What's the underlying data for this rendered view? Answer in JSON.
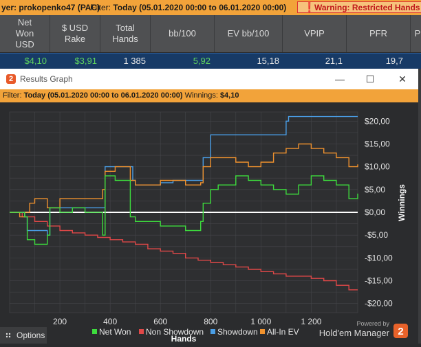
{
  "topbar": {
    "player_text": "yer: prokopenko47 (PAC)",
    "filter_label": "Filter:",
    "filter_value": "Today (05.01.2020 00:00 to 06.01.2020 00:00)",
    "warning": "Warning: Restricted Hands Sma"
  },
  "stats": {
    "headers": [
      "Net Won USD",
      "$ USD Rake",
      "Total Hands",
      "bb/100",
      "EV bb/100",
      "VPIP",
      "PFR",
      "P"
    ],
    "values": [
      "$4,10",
      "$3,91",
      "1 385",
      "5,92",
      "15,18",
      "21,1",
      "19,7"
    ],
    "value_colors": [
      "#5fd35f",
      "#5fd35f",
      "#e8e8e8",
      "#5fd35f",
      "#e8e8e8",
      "#e8e8e8",
      "#e8e8e8"
    ]
  },
  "window": {
    "title": "Results Graph",
    "logo_char": "2",
    "minimize": "—",
    "maximize": "☐",
    "close": "✕"
  },
  "filterbar": {
    "label": "Filter:",
    "value": "Today (05.01.2020 00:00 to 06.01.2020 00:00)",
    "winnings_label": "Winnings:",
    "winnings_value": "$4,10"
  },
  "chart_data": {
    "type": "line",
    "xlabel": "Hands",
    "ylabel": "Winnings",
    "xlim": [
      0,
      1385
    ],
    "ylim": [
      -22,
      22
    ],
    "xticks": [
      200,
      400,
      600,
      800,
      1000,
      1200
    ],
    "xtick_labels": [
      "200",
      "400",
      "600",
      "800",
      "1 000",
      "1 200"
    ],
    "yticks": [
      20,
      15,
      10,
      5,
      0,
      -5,
      -10,
      -15,
      -20
    ],
    "ytick_labels": [
      "$20,00",
      "$15,00",
      "$10,00",
      "$5,00",
      "$0,00",
      "-$5,00",
      "-$10,00",
      "-$15,00",
      "-$20,00"
    ],
    "grid": true,
    "legend_position": "bottom",
    "series": [
      {
        "name": "Net Won",
        "color": "#3ddc3d",
        "x": [
          0,
          60,
          70,
          100,
          150,
          160,
          200,
          250,
          300,
          370,
          380,
          420,
          480,
          500,
          550,
          600,
          650,
          700,
          760,
          770,
          800,
          830,
          860,
          900,
          950,
          1000,
          1050,
          1100,
          1150,
          1200,
          1250,
          1300,
          1350,
          1385
        ],
        "y": [
          0,
          -1,
          -6,
          -7,
          -5,
          1,
          0,
          1,
          0,
          -5,
          8,
          7,
          -1,
          -2,
          -2,
          -3,
          -3,
          -4,
          -2,
          2,
          5,
          6,
          6,
          8,
          7,
          6,
          5,
          4,
          6,
          8,
          7,
          6,
          3,
          4.1
        ]
      },
      {
        "name": "Non Showdown",
        "color": "#e04848",
        "x": [
          0,
          50,
          100,
          150,
          200,
          250,
          300,
          350,
          400,
          450,
          500,
          550,
          600,
          650,
          700,
          750,
          800,
          850,
          900,
          950,
          1000,
          1050,
          1100,
          1150,
          1200,
          1250,
          1300,
          1350,
          1385
        ],
        "y": [
          0,
          -1,
          -2,
          -3,
          -4,
          -4.5,
          -5,
          -5.5,
          -6,
          -6.5,
          -7,
          -8,
          -8.5,
          -9,
          -10,
          -10.5,
          -11,
          -11.5,
          -12,
          -12.5,
          -13,
          -13.5,
          -14,
          -14,
          -14.5,
          -15,
          -16,
          -17,
          -17
        ]
      },
      {
        "name": "Showdown",
        "color": "#4a9ee6",
        "x": [
          0,
          60,
          70,
          150,
          160,
          370,
          380,
          480,
          490,
          500,
          600,
          650,
          700,
          760,
          770,
          790,
          800,
          850,
          900,
          1100,
          1110,
          1385
        ],
        "y": [
          0,
          -1,
          -4,
          -5,
          1,
          1,
          10,
          10,
          7,
          6,
          6.5,
          7,
          7,
          7,
          12,
          12,
          17,
          17,
          17,
          20,
          21,
          21
        ]
      },
      {
        "name": "All-In EV",
        "color": "#f0922e",
        "x": [
          0,
          40,
          60,
          80,
          100,
          150,
          200,
          250,
          300,
          370,
          380,
          420,
          480,
          500,
          550,
          600,
          650,
          700,
          760,
          770,
          800,
          850,
          900,
          950,
          1000,
          1050,
          1100,
          1150,
          1200,
          1250,
          1300,
          1350,
          1385
        ],
        "y": [
          0,
          -1,
          0,
          2,
          3,
          1,
          3,
          3,
          3,
          5,
          9,
          10,
          7,
          6,
          6,
          7,
          7,
          6,
          6.5,
          10,
          12,
          12,
          11,
          10,
          11,
          13,
          14,
          15,
          14,
          13,
          12,
          10,
          10.5
        ]
      }
    ]
  },
  "legend_items": [
    {
      "label": "Net Won",
      "color": "#3ddc3d"
    },
    {
      "label": "Non Showdown",
      "color": "#e04848"
    },
    {
      "label": "Showdown",
      "color": "#4a9ee6"
    },
    {
      "label": "All-In EV",
      "color": "#f0922e"
    }
  ],
  "branding": {
    "powered_by": "Powered by",
    "product": "Hold'em Manager",
    "badge": "2"
  },
  "options": {
    "label": "Options"
  }
}
